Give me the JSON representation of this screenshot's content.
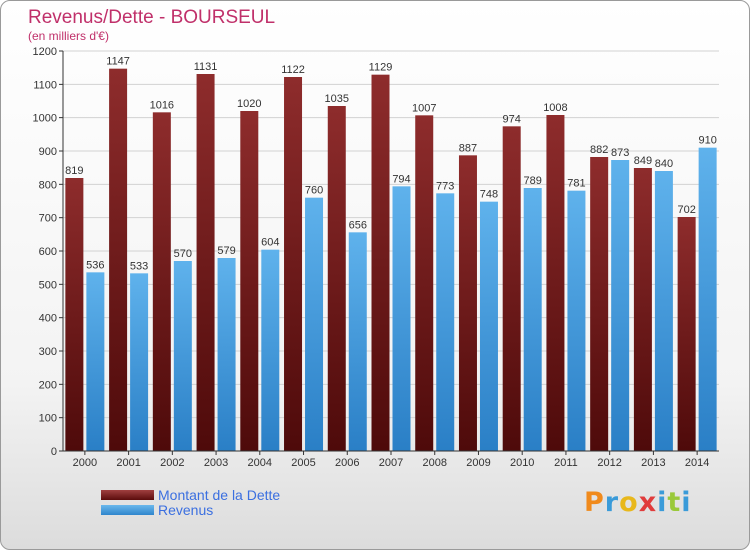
{
  "header": {
    "title": "Revenus/Dette - BOURSEUL",
    "subtitle": "(en milliers d'€)"
  },
  "legend": {
    "debt_label": "Montant de la Dette",
    "revenue_label": "Revenus"
  },
  "logo": {
    "text": "Proxiti",
    "letter_colors": [
      "#f08a1c",
      "#3a9bd9",
      "#e8b81c",
      "#e03c3c",
      "#3a9bd9",
      "#9ac93a",
      "#3a9bd9"
    ]
  },
  "chart_data": {
    "type": "bar",
    "categories": [
      "2000",
      "2001",
      "2002",
      "2003",
      "2004",
      "2005",
      "2006",
      "2007",
      "2008",
      "2009",
      "2010",
      "2011",
      "2012",
      "2013",
      "2014"
    ],
    "series": [
      {
        "name": "Montant de la Dette",
        "color": "#7a1e1e",
        "values": [
          819,
          1147,
          1016,
          1131,
          1020,
          1122,
          1035,
          1129,
          1007,
          887,
          974,
          1008,
          882,
          849,
          702
        ]
      },
      {
        "name": "Revenus",
        "color": "#3d9ae0",
        "values": [
          536,
          533,
          570,
          579,
          604,
          760,
          656,
          794,
          773,
          748,
          789,
          781,
          873,
          840,
          910
        ]
      }
    ],
    "yticks": [
      0,
      100,
      200,
      300,
      400,
      500,
      600,
      700,
      800,
      900,
      1000,
      1100,
      1200
    ],
    "ylim": [
      0,
      1200
    ],
    "grid": true,
    "legend_position": "bottom-left"
  }
}
